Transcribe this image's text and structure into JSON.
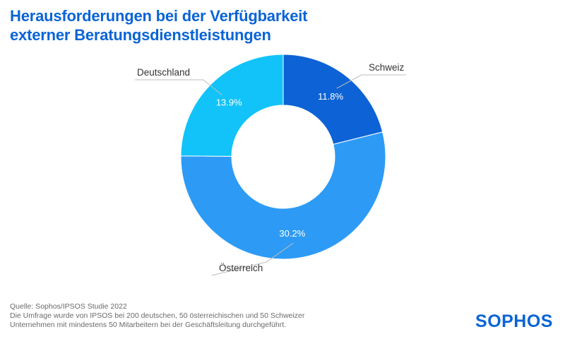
{
  "title_lines": [
    "Herausforderungen bei der Verfügbarkeit",
    "externer Beratungsdienstleistungen"
  ],
  "colors": {
    "title": "#0a64d6",
    "schweiz": "#0d63d5",
    "oesterreich": "#2d9bf5",
    "deutschland": "#12c3f9",
    "label_line": "#bdbdbd"
  },
  "chart_data": {
    "type": "pie",
    "variant": "donut",
    "title": "Herausforderungen bei der Verfügbarkeit externer Beratungsdienstleistungen",
    "slices": [
      {
        "name": "Schweiz",
        "value": 11.8,
        "label": "11.8%",
        "color": "#0d63d5"
      },
      {
        "name": "Österreich",
        "value": 30.2,
        "label": "30.2%",
        "color": "#2d9bf5"
      },
      {
        "name": "Deutschland",
        "value": 13.9,
        "label": "13.9%",
        "color": "#12c3f9"
      }
    ]
  },
  "footer": {
    "line1": "Quelle: Sophos/IPSOS Studie 2022",
    "line2": "Die Umfrage wurde von IPSOS bei 200 deutschen, 50 österreichischen und 50 Schweizer",
    "line3": "Unternehmen mit mindestens 50 Mitarbeitern bei der Geschäftsleitung durchgeführt."
  },
  "logo": {
    "text": "SOPHOS"
  }
}
